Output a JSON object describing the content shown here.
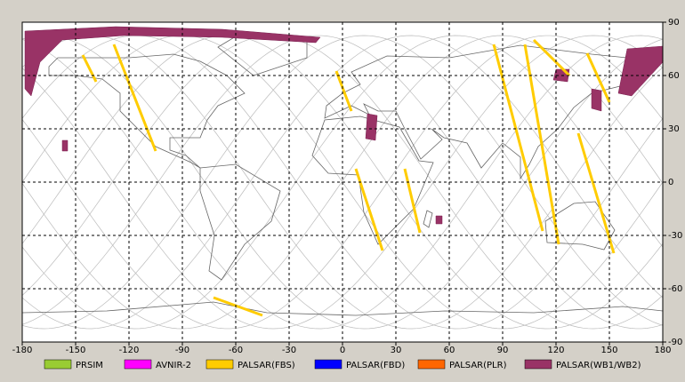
{
  "map": {
    "xlim": [
      -180,
      180
    ],
    "ylim": [
      -90,
      90
    ],
    "xticks": [
      -180,
      -150,
      -120,
      -90,
      -60,
      -30,
      0,
      30,
      60,
      90,
      120,
      150,
      180
    ],
    "yticks": [
      90,
      60,
      30,
      0,
      -30,
      -60,
      -90
    ],
    "legend": [
      {
        "label": "PRSIM",
        "color": "#99cc33"
      },
      {
        "label": "AVNIR-2",
        "color": "#ff00ff"
      },
      {
        "label": "PALSAR(FBS)",
        "color": "#ffcc00"
      },
      {
        "label": "PALSAR(FBD)",
        "color": "#0000ff"
      },
      {
        "label": "PALSAR(PLR)",
        "color": "#ff6600"
      },
      {
        "label": "PALSAR(WB1/WB2)",
        "color": "#993366"
      }
    ]
  }
}
